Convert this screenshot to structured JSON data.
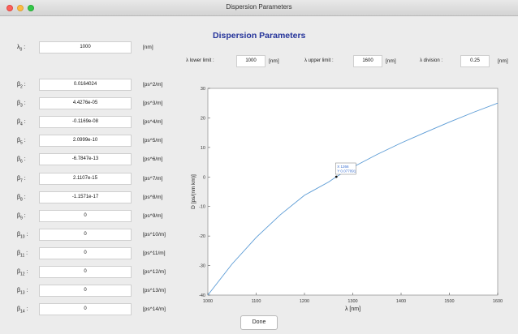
{
  "window": {
    "title": "Dispersion Parameters"
  },
  "heading": "Dispersion Parameters",
  "lambda0": {
    "symbol": "λ",
    "sub": "0",
    "colon": " :",
    "value": "1000",
    "unit": "[nm]"
  },
  "range": {
    "lower_label": "λ lower limit :",
    "lower_value": "1000",
    "lower_unit": "[nm]",
    "upper_label": "λ upper limit :",
    "upper_value": "1600",
    "upper_unit": "[nm]",
    "division_label": "λ division :",
    "division_value": "0.25",
    "division_unit": "[nm]"
  },
  "betas": [
    {
      "sub": "2",
      "value": "0.0164024",
      "unit": "[ps^2/m]"
    },
    {
      "sub": "3",
      "value": "4.4276e-05",
      "unit": "[ps^3/m]"
    },
    {
      "sub": "4",
      "value": "-0.1169e-08",
      "unit": "[ps^4/m]"
    },
    {
      "sub": "5",
      "value": "2.0999e-10",
      "unit": "[ps^5/m]"
    },
    {
      "sub": "6",
      "value": "-6.7847e-13",
      "unit": "[ps^6/m]"
    },
    {
      "sub": "7",
      "value": "2.1107e-15",
      "unit": "[ps^7/m]"
    },
    {
      "sub": "8",
      "value": "-1.1571e-17",
      "unit": "[ps^8/m]"
    },
    {
      "sub": "9",
      "value": "0",
      "unit": "[ps^9/m]"
    },
    {
      "sub": "10",
      "value": "0",
      "unit": "[ps^10/m]"
    },
    {
      "sub": "11",
      "value": "0",
      "unit": "[ps^11/m]"
    },
    {
      "sub": "12",
      "value": "0",
      "unit": "[ps^12/m]"
    },
    {
      "sub": "13",
      "value": "0",
      "unit": "[ps^13/m]"
    },
    {
      "sub": "14",
      "value": "0",
      "unit": "[ps^14/m]"
    }
  ],
  "done_label": "Done",
  "colors": {
    "curve": "#5b9bd5",
    "heading": "#24339a",
    "datatip": "#3a6fd0"
  },
  "chart_data": {
    "type": "line",
    "xlabel": "λ [nm]",
    "ylabel": "D [ps/(nm km)]",
    "xlim": [
      1000,
      1600
    ],
    "ylim": [
      -40,
      30
    ],
    "xticks": [
      1000,
      1100,
      1200,
      1300,
      1400,
      1500,
      1600
    ],
    "yticks": [
      -40,
      -30,
      -20,
      -10,
      0,
      10,
      20,
      30
    ],
    "grid": false,
    "series": [
      {
        "x": [
          1000,
          1050,
          1100,
          1150,
          1200,
          1250,
          1266,
          1300,
          1350,
          1400,
          1450,
          1500,
          1550,
          1600
        ],
        "y": [
          -40,
          -29.5,
          -20.5,
          -12.8,
          -6.2,
          -1.7,
          0.08,
          3.3,
          7.6,
          11.5,
          15.1,
          18.6,
          21.9,
          25
        ]
      }
    ],
    "datatip": {
      "x_label": "X 1266",
      "y_label": "Y 0.077091",
      "x": 1266,
      "y": 0.077091
    }
  }
}
